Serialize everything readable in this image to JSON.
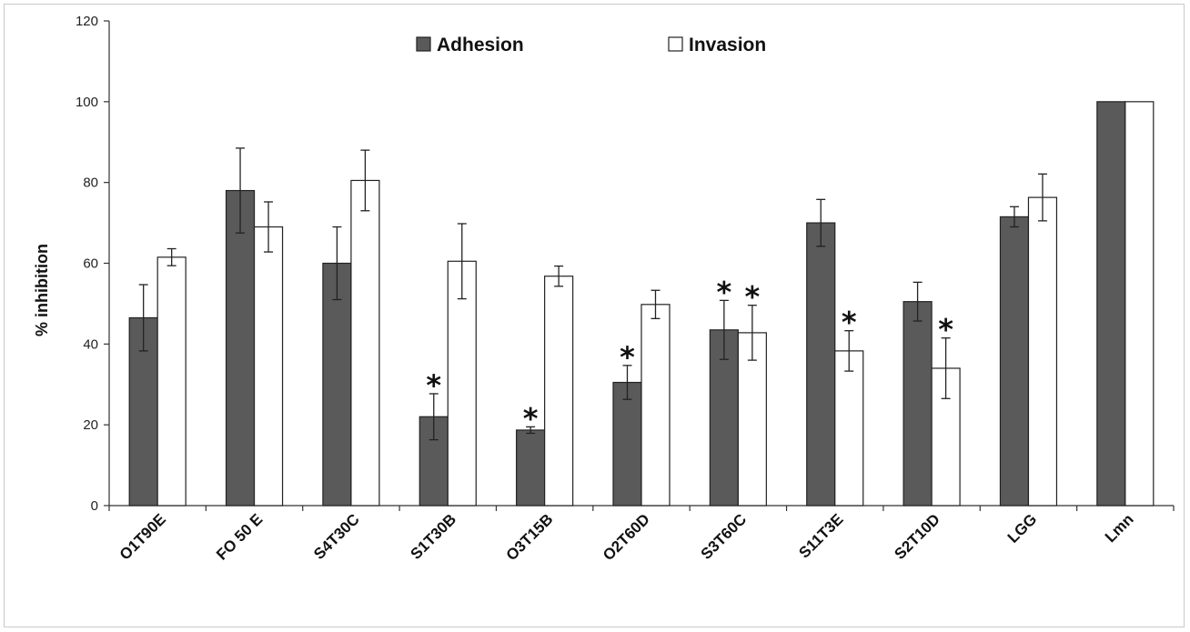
{
  "chart_data": {
    "type": "bar",
    "title": "",
    "xlabel": "",
    "ylabel": "% inhibition",
    "ylim": [
      0,
      120
    ],
    "yticks": [
      0,
      20,
      40,
      60,
      80,
      100,
      120
    ],
    "grid": false,
    "legend_position": "top-center",
    "categories": [
      "O1T90E",
      "FO 50 E",
      "S4T30C",
      "S1T30B",
      "O3T15B",
      "O2T60D",
      "S3T60C",
      "S11T3E",
      "S2T10D",
      "LGG",
      "Lmn"
    ],
    "series": [
      {
        "name": "Adhesion",
        "color": "#5a5a5a",
        "values": [
          46.5,
          78,
          60,
          22,
          18.7,
          30.5,
          43.5,
          70,
          50.5,
          71.5,
          100
        ],
        "errors": [
          8.2,
          10.5,
          9,
          5.7,
          0.8,
          4.2,
          7.3,
          5.8,
          4.8,
          2.5,
          0
        ],
        "significant": [
          false,
          false,
          false,
          true,
          true,
          true,
          true,
          false,
          false,
          false,
          false
        ]
      },
      {
        "name": "Invasion",
        "color": "#ffffff",
        "values": [
          61.5,
          69,
          80.5,
          60.5,
          56.8,
          49.8,
          42.8,
          38.3,
          34,
          76.3,
          100
        ],
        "errors": [
          2.1,
          6.2,
          7.5,
          9.3,
          2.5,
          3.5,
          6.8,
          5,
          7.5,
          5.8,
          0
        ],
        "significant": [
          false,
          false,
          false,
          false,
          false,
          false,
          true,
          true,
          true,
          false,
          false
        ]
      }
    ],
    "significance_marker": "*"
  }
}
